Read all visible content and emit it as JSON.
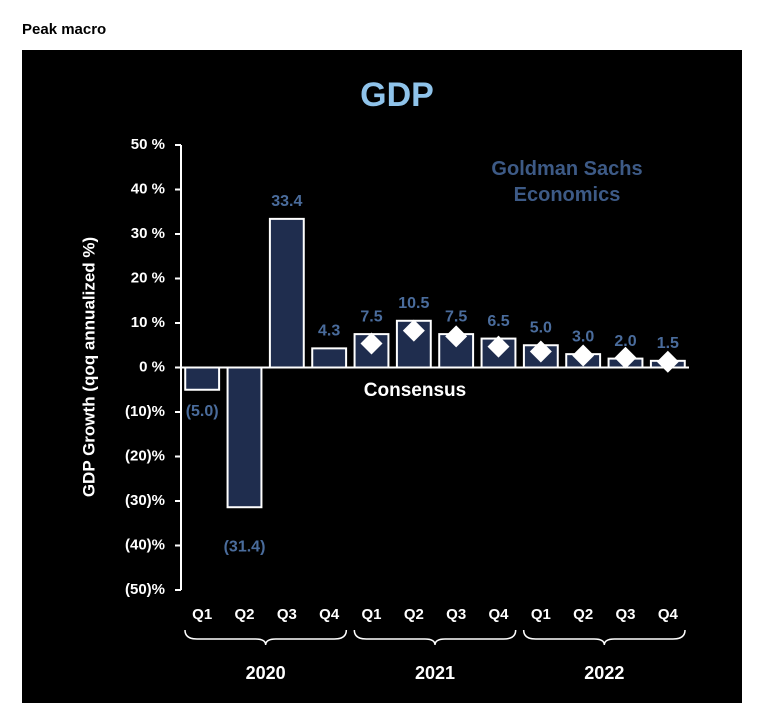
{
  "header": "Peak macro",
  "chart_data": {
    "type": "bar",
    "title": "GDP",
    "ylabel": "GDP Growth (qoq annualized %)",
    "categories": [
      "Q1",
      "Q2",
      "Q3",
      "Q4",
      "Q1",
      "Q2",
      "Q3",
      "Q4",
      "Q1",
      "Q2",
      "Q3",
      "Q4"
    ],
    "x_groups": [
      "2020",
      "2021",
      "2022"
    ],
    "series": [
      {
        "name": "Goldman Sachs Economics",
        "color": "#1f2d4e",
        "values": [
          -5.0,
          -31.4,
          33.4,
          4.3,
          7.5,
          10.5,
          7.5,
          6.5,
          5.0,
          3.0,
          2.0,
          1.5
        ],
        "value_labels": [
          "(5.0)",
          "(31.4)",
          "33.4",
          "4.3",
          "7.5",
          "10.5",
          "7.5",
          "6.5",
          "5.0",
          "3.0",
          "2.0",
          "1.5"
        ]
      },
      {
        "name": "Consensus",
        "color": "#ffffff",
        "values": [
          null,
          null,
          null,
          null,
          5.4,
          8.3,
          7.0,
          4.7,
          3.6,
          2.7,
          2.2,
          1.3
        ]
      }
    ],
    "ylim": [
      -50,
      50
    ],
    "yticks": [
      {
        "value": 50,
        "label": "50 %"
      },
      {
        "value": 40,
        "label": "40 %"
      },
      {
        "value": 30,
        "label": "30 %"
      },
      {
        "value": 20,
        "label": "20 %"
      },
      {
        "value": 10,
        "label": "10 %"
      },
      {
        "value": 0,
        "label": "0 %"
      },
      {
        "value": -10,
        "label": "(10)%"
      },
      {
        "value": -20,
        "label": "(20)%"
      },
      {
        "value": -30,
        "label": "(30)%"
      },
      {
        "value": -40,
        "label": "(40)%"
      },
      {
        "value": -50,
        "label": "(50)%"
      }
    ]
  }
}
